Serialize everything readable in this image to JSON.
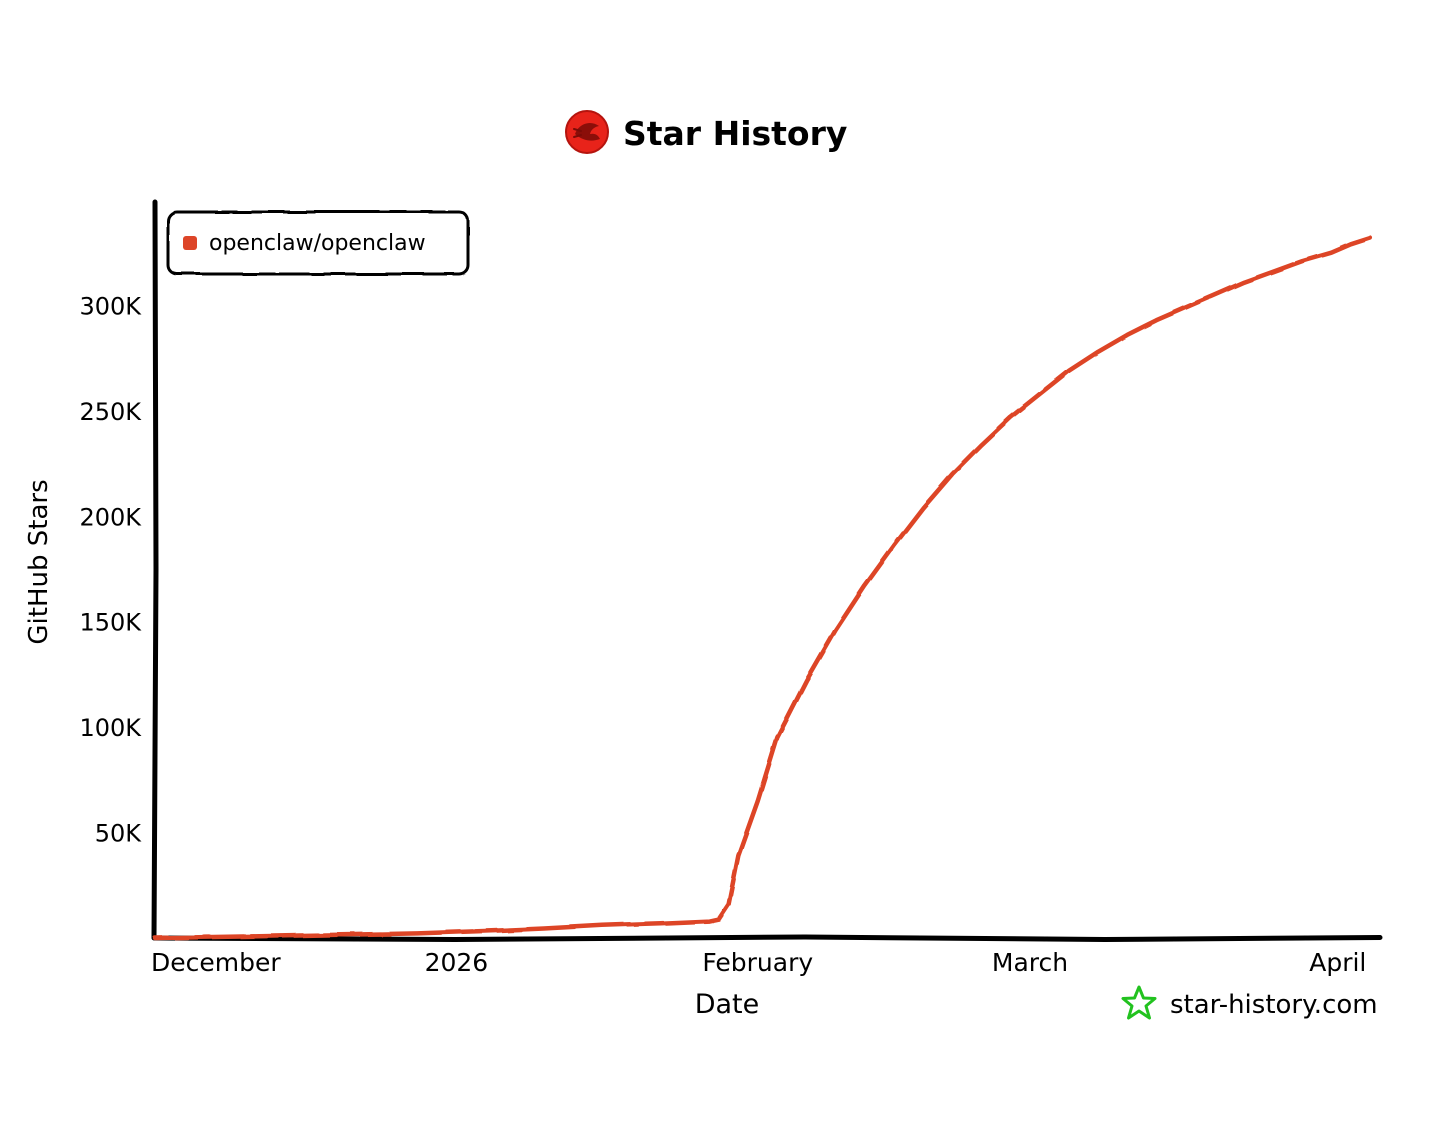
{
  "header": {
    "title": "Star History",
    "logo_icon": "star-history-logo-icon"
  },
  "watermark": {
    "text": "star-history.com",
    "icon": "star-outline-icon",
    "icon_color": "#22c21f"
  },
  "chart_data": {
    "type": "line",
    "title": "Star History",
    "xlabel": "Date",
    "ylabel": "GitHub Stars",
    "x_ticks": [
      "December",
      "2026",
      "February",
      "March",
      "April"
    ],
    "x_tick_dates": [
      "2025-12-01",
      "2026-01-01",
      "2026-02-01",
      "2026-03-01",
      "2026-04-01"
    ],
    "y_ticks": [
      "50K",
      "100K",
      "150K",
      "200K",
      "250K",
      "300K"
    ],
    "y_tick_values": [
      50000,
      100000,
      150000,
      200000,
      250000,
      300000
    ],
    "xlim": [
      "2025-12-01",
      "2026-04-06"
    ],
    "ylim": [
      0,
      350000
    ],
    "grid": false,
    "legend_position": "top-left",
    "series": [
      {
        "name": "openclaw/openclaw",
        "color": "#dd4528",
        "x": [
          "2025-12-01",
          "2025-12-10",
          "2025-12-20",
          "2025-12-28",
          "2026-01-05",
          "2026-01-10",
          "2026-01-16",
          "2026-01-22",
          "2026-01-27",
          "2026-01-28",
          "2026-01-29",
          "2026-01-30",
          "2026-02-01",
          "2026-02-03",
          "2026-02-06",
          "2026-02-09",
          "2026-02-12",
          "2026-02-15",
          "2026-02-18",
          "2026-02-21",
          "2026-02-24",
          "2026-02-27",
          "2026-03-02",
          "2026-03-05",
          "2026-03-08",
          "2026-03-11",
          "2026-03-14",
          "2026-03-17",
          "2026-03-20",
          "2026-03-23",
          "2026-03-26",
          "2026-03-29",
          "2026-04-01",
          "2026-04-03",
          "2026-04-05"
        ],
        "values": [
          0,
          700,
          1500,
          2200,
          3500,
          4500,
          6000,
          7000,
          8000,
          9000,
          16000,
          39000,
          65000,
          95000,
          122000,
          146000,
          167000,
          186000,
          204000,
          220000,
          234000,
          247000,
          258000,
          269000,
          278000,
          286000,
          293000,
          299000,
          305000,
          311000,
          316000,
          321000,
          325000,
          329000,
          332000
        ]
      }
    ]
  }
}
